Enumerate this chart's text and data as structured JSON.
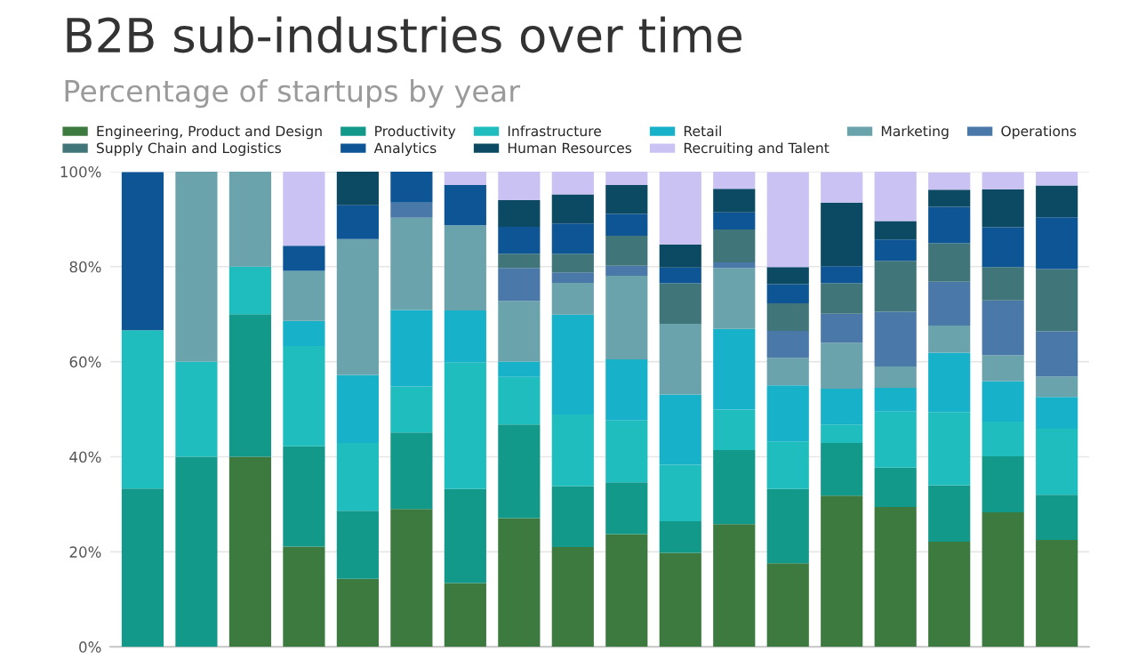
{
  "chart_data": {
    "type": "bar",
    "stacked": true,
    "title": "B2B sub-industries over time",
    "subtitle": "Percentage of startups by year",
    "categories": [
      null,
      null,
      null,
      null,
      null,
      null,
      null,
      null,
      null,
      null,
      null,
      null,
      null,
      null,
      null,
      null,
      null,
      null
    ],
    "series": [
      {
        "name": "Engineering, Product and Design",
        "color": "#3d7a3f",
        "values": [
          0,
          0,
          40,
          21.1,
          14.3,
          29,
          13.4,
          27.1,
          21,
          23.7,
          19.8,
          25.8,
          17.6,
          31.8,
          29.4,
          22.1,
          28.3,
          22.5
        ]
      },
      {
        "name": "Productivity",
        "color": "#12998a",
        "values": [
          33.3,
          40,
          30,
          21.1,
          14.3,
          16.1,
          19.8,
          19.7,
          12.8,
          10.9,
          6.6,
          15.6,
          15.6,
          11.1,
          8.3,
          11.9,
          11.8,
          9.5
        ]
      },
      {
        "name": "Infrastructure",
        "color": "#1fbdbd",
        "values": [
          33.3,
          20,
          10,
          21.1,
          14.3,
          9.7,
          26.7,
          10,
          15.1,
          13,
          11.9,
          8.5,
          10,
          3.9,
          11.8,
          15.4,
          7.3,
          13.9
        ]
      },
      {
        "name": "Retail",
        "color": "#17b1c9",
        "values": [
          0,
          0,
          0,
          5.3,
          14.3,
          16.1,
          10.9,
          3.2,
          21,
          12.9,
          14.8,
          17,
          11.8,
          7.5,
          5,
          12.5,
          8.5,
          6.7
        ]
      },
      {
        "name": "Marketing",
        "color": "#6ba3ad",
        "values": [
          0,
          40,
          20,
          10.5,
          28.6,
          19.4,
          17.9,
          12.8,
          6.7,
          17.6,
          14.9,
          12.8,
          5.8,
          9.7,
          4.5,
          5.7,
          5.5,
          4.3
        ]
      },
      {
        "name": "Operations",
        "color": "#4a78a8",
        "values": [
          0,
          0,
          0,
          0,
          0,
          3.2,
          0,
          6.9,
          2.2,
          2.1,
          0,
          1.2,
          5.7,
          6.1,
          11.5,
          9.2,
          11.5,
          9.5
        ]
      },
      {
        "name": "Supply Chain and Logistics",
        "color": "#40767a",
        "values": [
          0,
          0,
          0,
          0,
          0,
          0,
          0,
          3,
          3.9,
          6.3,
          8.5,
          6.9,
          5.8,
          6.4,
          10.7,
          8.1,
          7,
          13.1
        ]
      },
      {
        "name": "Analytics",
        "color": "#0d5595",
        "values": [
          33.3,
          0,
          0,
          5.3,
          7.1,
          6.5,
          8.5,
          5.7,
          6.4,
          4.6,
          3.3,
          3.6,
          4,
          3.6,
          4.5,
          7.7,
          8.4,
          10.9
        ]
      },
      {
        "name": "Human Resources",
        "color": "#0c4a63",
        "values": [
          0,
          0,
          0,
          0,
          7.1,
          0,
          0,
          5.6,
          6.1,
          6.1,
          4.9,
          5,
          3.6,
          13.4,
          3.9,
          3.6,
          8,
          6.7
        ]
      },
      {
        "name": "Recruiting and Talent",
        "color": "#c9c2f2",
        "values": [
          0,
          0,
          0,
          15.8,
          0,
          0,
          2.8,
          6.1,
          4.9,
          2.8,
          15.3,
          3.6,
          20,
          6.4,
          10.4,
          3.6,
          3.6,
          3
        ]
      }
    ],
    "ylim": [
      0,
      100
    ],
    "yticks": [
      {
        "value": 0,
        "label": "0%"
      },
      {
        "value": 20,
        "label": "20%"
      },
      {
        "value": 40,
        "label": "40%"
      },
      {
        "value": 60,
        "label": "60%"
      },
      {
        "value": 80,
        "label": "80%"
      },
      {
        "value": 100,
        "label": "100%"
      }
    ],
    "tick_labels": "y",
    "grid": "y",
    "legend": "top"
  }
}
